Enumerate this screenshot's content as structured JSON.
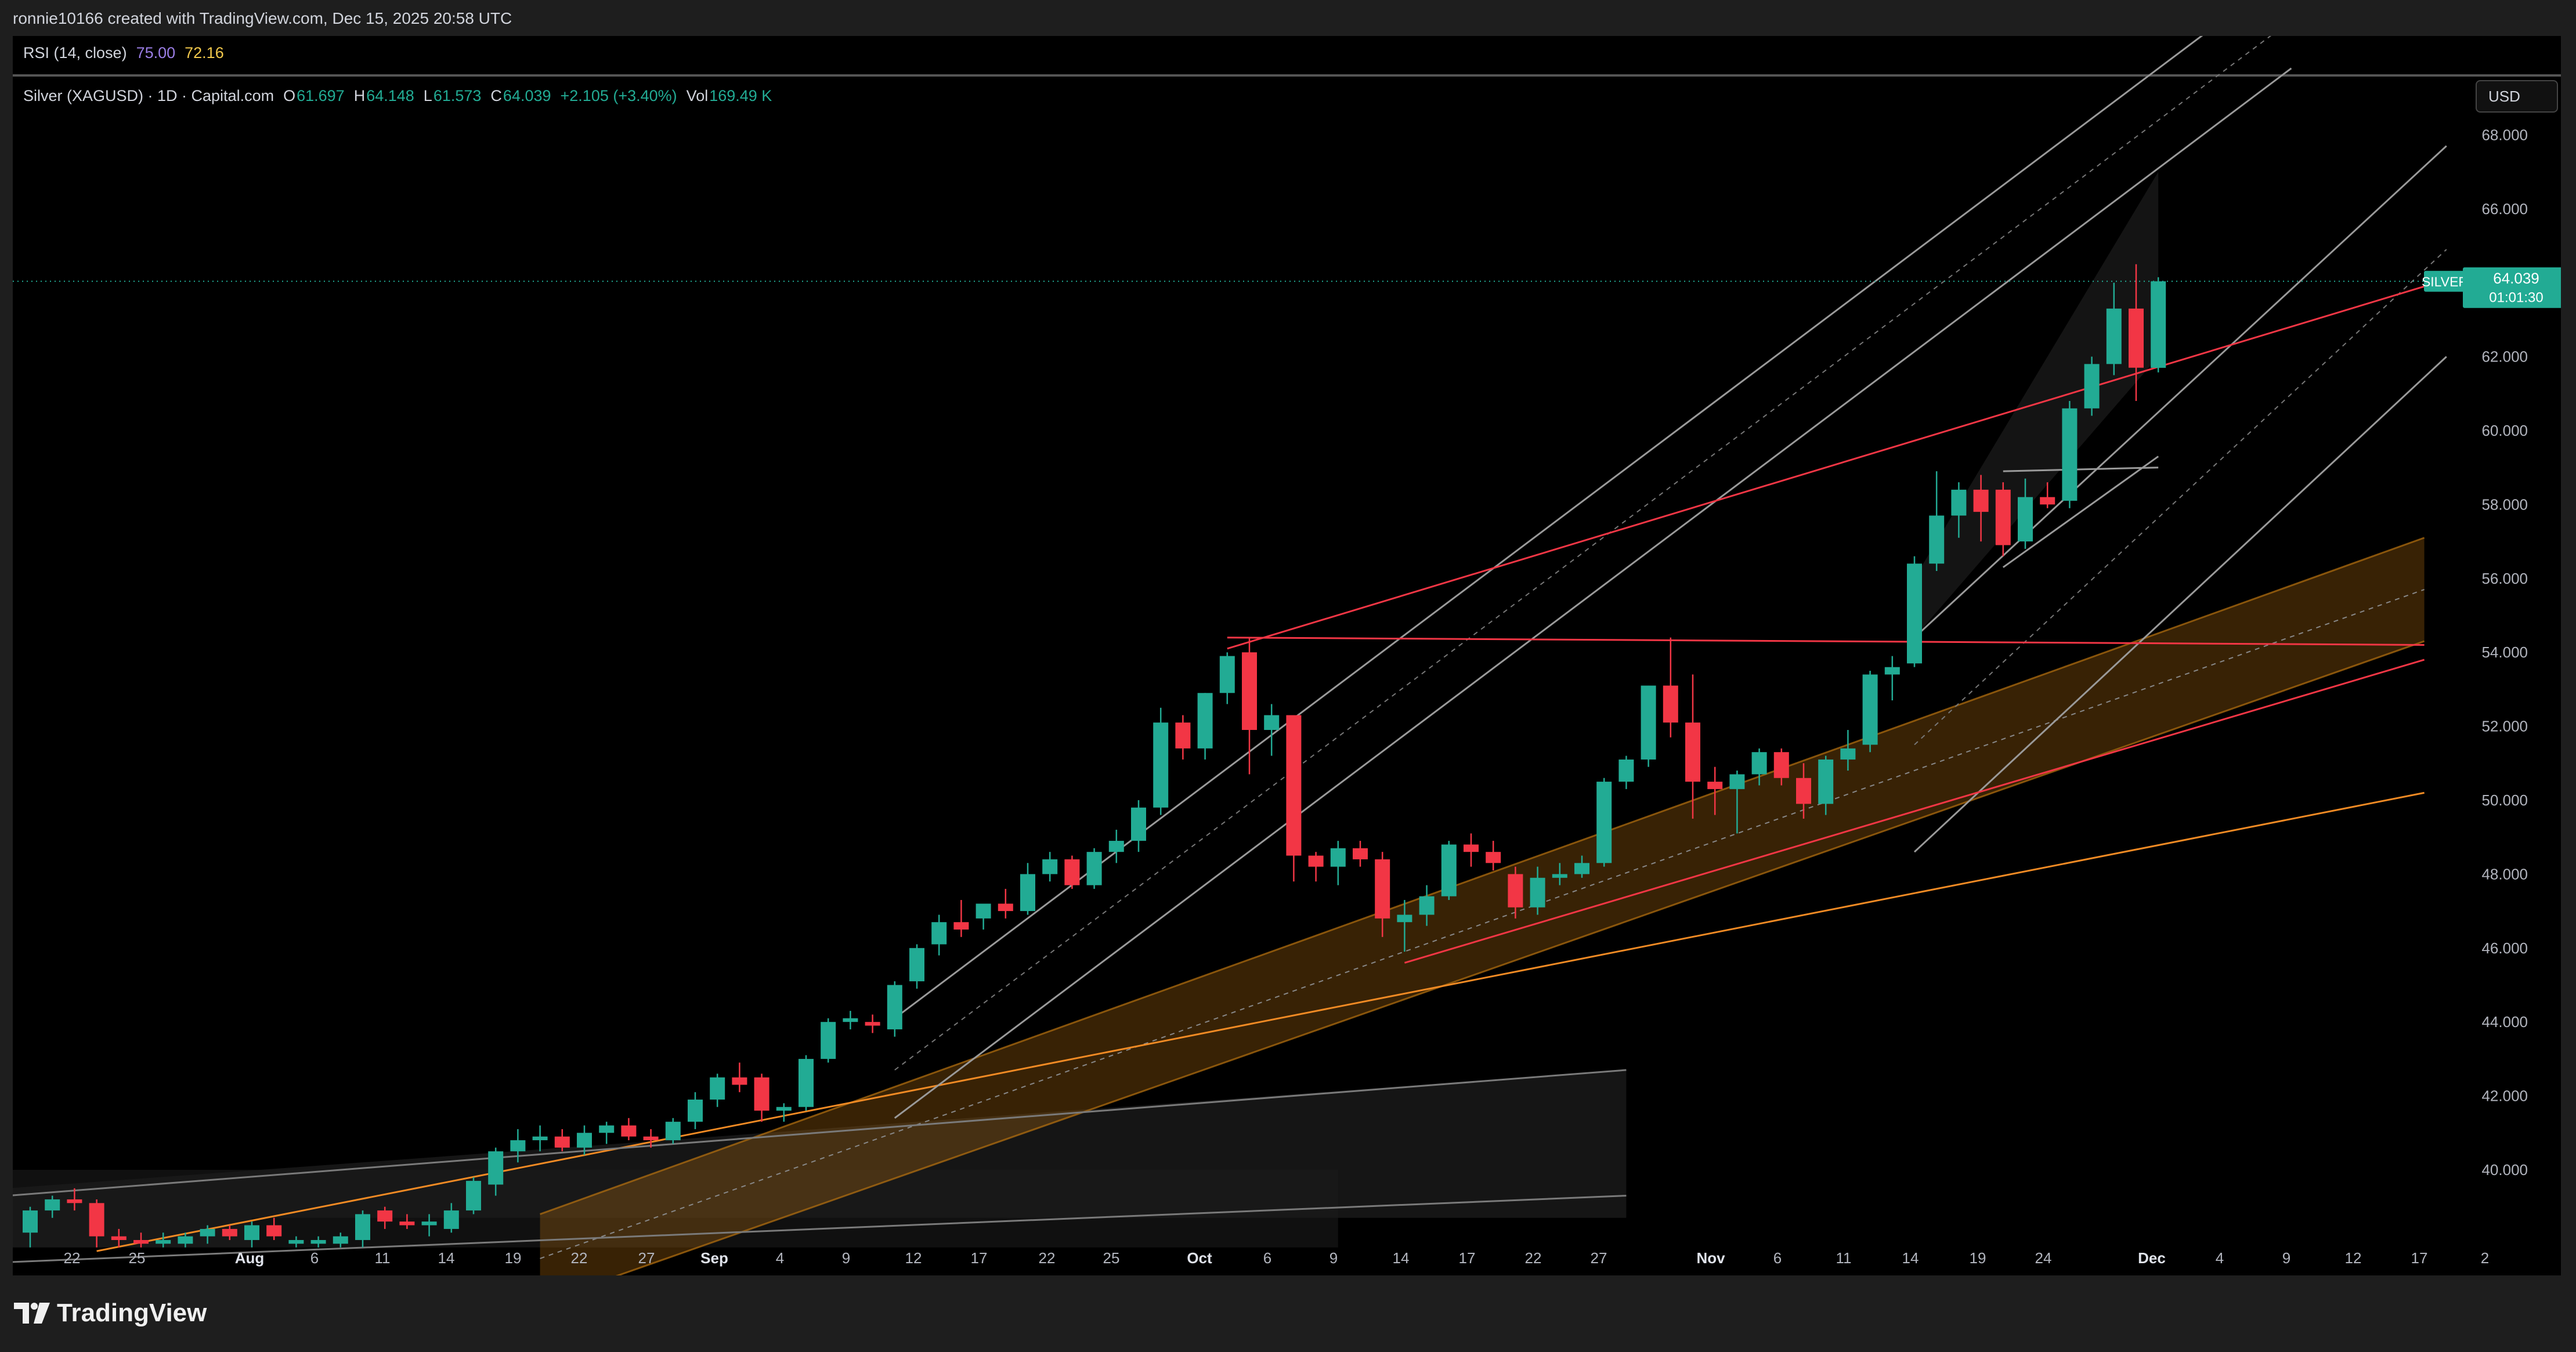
{
  "header": {
    "credit": "ronnie10166 created with TradingView.com, Dec 15, 2025 20:58 UTC"
  },
  "rsi": {
    "label": "RSI (14, close)",
    "value1": "75.00",
    "value2": "72.16"
  },
  "legend": {
    "symbol": "Silver (XAGUSD) · 1D · Capital.com",
    "open_key": "O",
    "open": "61.697",
    "high_key": "H",
    "high": "64.148",
    "low_key": "L",
    "low": "61.573",
    "close_key": "C",
    "close": "64.039",
    "change": "+2.105 (+3.40%)",
    "vol_key": "Vol",
    "vol": "169.49 K"
  },
  "currency_button": "USD",
  "price_tag": {
    "symbol": "SILVER",
    "price": "64.039",
    "countdown": "01:01:30"
  },
  "footer": {
    "brand": "TradingView"
  },
  "colors": {
    "up": "#22ab94",
    "down": "#f23645",
    "channel_fill": "#b8720f",
    "red_line": "#f23645",
    "orange_line": "#f08a24"
  },
  "chart_data": {
    "type": "candlestick",
    "title": "Silver (XAGUSD) · 1D · Capital.com",
    "ylabel": "USD",
    "ylim": [
      37.9,
      69.3
    ],
    "y_ticks": [
      "40.000",
      "42.000",
      "44.000",
      "46.000",
      "48.000",
      "50.000",
      "52.000",
      "54.000",
      "56.000",
      "58.000",
      "60.000",
      "62.000",
      "64.000",
      "66.000",
      "68.000"
    ],
    "x_ticks": [
      "22",
      "25",
      "Aug",
      "6",
      "11",
      "14",
      "19",
      "22",
      "27",
      "Sep",
      "4",
      "9",
      "12",
      "17",
      "22",
      "25",
      "Oct",
      "6",
      "9",
      "14",
      "17",
      "22",
      "27",
      "Nov",
      "6",
      "11",
      "14",
      "19",
      "24",
      "Dec",
      "4",
      "9",
      "12",
      "17",
      "2"
    ],
    "candles": [
      {
        "o": 38.3,
        "h": 39.0,
        "l": 37.9,
        "c": 38.9
      },
      {
        "o": 38.9,
        "h": 39.3,
        "l": 38.7,
        "c": 39.2
      },
      {
        "o": 39.2,
        "h": 39.5,
        "l": 38.9,
        "c": 39.1
      },
      {
        "o": 39.1,
        "h": 39.2,
        "l": 37.9,
        "c": 38.2
      },
      {
        "o": 38.2,
        "h": 38.4,
        "l": 37.9,
        "c": 38.1
      },
      {
        "o": 38.1,
        "h": 38.3,
        "l": 37.9,
        "c": 38.0
      },
      {
        "o": 38.0,
        "h": 38.3,
        "l": 37.9,
        "c": 38.1
      },
      {
        "o": 38.0,
        "h": 38.3,
        "l": 37.9,
        "c": 38.2
      },
      {
        "o": 38.2,
        "h": 38.5,
        "l": 38.0,
        "c": 38.4
      },
      {
        "o": 38.4,
        "h": 38.5,
        "l": 38.1,
        "c": 38.2
      },
      {
        "o": 38.1,
        "h": 38.6,
        "l": 37.9,
        "c": 38.5
      },
      {
        "o": 38.5,
        "h": 38.7,
        "l": 38.1,
        "c": 38.2
      },
      {
        "o": 38.0,
        "h": 38.2,
        "l": 37.9,
        "c": 38.1
      },
      {
        "o": 38.0,
        "h": 38.2,
        "l": 37.9,
        "c": 38.1
      },
      {
        "o": 38.0,
        "h": 38.3,
        "l": 37.9,
        "c": 38.2
      },
      {
        "o": 38.1,
        "h": 38.9,
        "l": 37.9,
        "c": 38.8
      },
      {
        "o": 38.9,
        "h": 39.0,
        "l": 38.4,
        "c": 38.6
      },
      {
        "o": 38.6,
        "h": 38.8,
        "l": 38.4,
        "c": 38.5
      },
      {
        "o": 38.5,
        "h": 38.8,
        "l": 38.2,
        "c": 38.6
      },
      {
        "o": 38.4,
        "h": 39.1,
        "l": 38.3,
        "c": 38.9
      },
      {
        "o": 38.9,
        "h": 39.8,
        "l": 38.8,
        "c": 39.7
      },
      {
        "o": 39.6,
        "h": 40.6,
        "l": 39.3,
        "c": 40.5
      },
      {
        "o": 40.5,
        "h": 41.1,
        "l": 40.2,
        "c": 40.8
      },
      {
        "o": 40.8,
        "h": 41.2,
        "l": 40.5,
        "c": 40.9
      },
      {
        "o": 40.9,
        "h": 41.1,
        "l": 40.5,
        "c": 40.6
      },
      {
        "o": 40.6,
        "h": 41.2,
        "l": 40.4,
        "c": 41.0
      },
      {
        "o": 41.0,
        "h": 41.3,
        "l": 40.7,
        "c": 41.2
      },
      {
        "o": 41.2,
        "h": 41.4,
        "l": 40.8,
        "c": 40.9
      },
      {
        "o": 40.9,
        "h": 41.1,
        "l": 40.6,
        "c": 40.8
      },
      {
        "o": 40.8,
        "h": 41.4,
        "l": 40.7,
        "c": 41.3
      },
      {
        "o": 41.3,
        "h": 42.1,
        "l": 41.1,
        "c": 41.9
      },
      {
        "o": 41.9,
        "h": 42.6,
        "l": 41.7,
        "c": 42.5
      },
      {
        "o": 42.5,
        "h": 42.9,
        "l": 42.1,
        "c": 42.3
      },
      {
        "o": 42.5,
        "h": 42.6,
        "l": 41.3,
        "c": 41.6
      },
      {
        "o": 41.6,
        "h": 41.8,
        "l": 41.3,
        "c": 41.7
      },
      {
        "o": 41.7,
        "h": 43.1,
        "l": 41.6,
        "c": 43.0
      },
      {
        "o": 43.0,
        "h": 44.1,
        "l": 42.9,
        "c": 44.0
      },
      {
        "o": 44.0,
        "h": 44.3,
        "l": 43.8,
        "c": 44.1
      },
      {
        "o": 44.0,
        "h": 44.2,
        "l": 43.7,
        "c": 43.9
      },
      {
        "o": 43.8,
        "h": 45.1,
        "l": 43.6,
        "c": 45.0
      },
      {
        "o": 45.1,
        "h": 46.1,
        "l": 44.9,
        "c": 46.0
      },
      {
        "o": 46.1,
        "h": 46.9,
        "l": 45.8,
        "c": 46.7
      },
      {
        "o": 46.7,
        "h": 47.3,
        "l": 46.3,
        "c": 46.5
      },
      {
        "o": 46.8,
        "h": 47.1,
        "l": 46.5,
        "c": 47.2
      },
      {
        "o": 47.2,
        "h": 47.6,
        "l": 46.8,
        "c": 47.0
      },
      {
        "o": 47.0,
        "h": 48.3,
        "l": 46.9,
        "c": 48.0
      },
      {
        "o": 48.0,
        "h": 48.6,
        "l": 47.8,
        "c": 48.4
      },
      {
        "o": 48.4,
        "h": 48.5,
        "l": 47.6,
        "c": 47.7
      },
      {
        "o": 47.7,
        "h": 48.7,
        "l": 47.6,
        "c": 48.6
      },
      {
        "o": 48.6,
        "h": 49.2,
        "l": 48.3,
        "c": 48.9
      },
      {
        "o": 48.9,
        "h": 50.0,
        "l": 48.6,
        "c": 49.8
      },
      {
        "o": 49.8,
        "h": 52.5,
        "l": 49.6,
        "c": 52.1
      },
      {
        "o": 52.1,
        "h": 52.3,
        "l": 51.1,
        "c": 51.4
      },
      {
        "o": 51.4,
        "h": 52.9,
        "l": 51.1,
        "c": 52.9
      },
      {
        "o": 52.9,
        "h": 54.0,
        "l": 52.6,
        "c": 53.9
      },
      {
        "o": 54.0,
        "h": 54.4,
        "l": 50.7,
        "c": 51.9
      },
      {
        "o": 51.9,
        "h": 52.6,
        "l": 51.2,
        "c": 52.3
      },
      {
        "o": 52.3,
        "h": 52.3,
        "l": 47.8,
        "c": 48.5
      },
      {
        "o": 48.5,
        "h": 48.6,
        "l": 47.8,
        "c": 48.2
      },
      {
        "o": 48.2,
        "h": 48.9,
        "l": 47.7,
        "c": 48.7
      },
      {
        "o": 48.7,
        "h": 48.9,
        "l": 48.2,
        "c": 48.4
      },
      {
        "o": 48.4,
        "h": 48.6,
        "l": 46.3,
        "c": 46.8
      },
      {
        "o": 46.7,
        "h": 47.3,
        "l": 45.9,
        "c": 46.9
      },
      {
        "o": 46.9,
        "h": 47.7,
        "l": 46.6,
        "c": 47.4
      },
      {
        "o": 47.4,
        "h": 48.9,
        "l": 47.3,
        "c": 48.8
      },
      {
        "o": 48.8,
        "h": 49.1,
        "l": 48.2,
        "c": 48.6
      },
      {
        "o": 48.6,
        "h": 48.9,
        "l": 48.1,
        "c": 48.3
      },
      {
        "o": 48.0,
        "h": 48.2,
        "l": 46.8,
        "c": 47.1
      },
      {
        "o": 47.1,
        "h": 48.2,
        "l": 46.9,
        "c": 47.9
      },
      {
        "o": 47.9,
        "h": 48.3,
        "l": 47.7,
        "c": 48.0
      },
      {
        "o": 48.0,
        "h": 48.5,
        "l": 47.9,
        "c": 48.3
      },
      {
        "o": 48.3,
        "h": 50.6,
        "l": 48.2,
        "c": 50.5
      },
      {
        "o": 50.5,
        "h": 51.2,
        "l": 50.3,
        "c": 51.1
      },
      {
        "o": 51.1,
        "h": 53.1,
        "l": 50.9,
        "c": 53.1
      },
      {
        "o": 53.1,
        "h": 54.4,
        "l": 51.7,
        "c": 52.1
      },
      {
        "o": 52.1,
        "h": 53.4,
        "l": 49.5,
        "c": 50.5
      },
      {
        "o": 50.5,
        "h": 50.9,
        "l": 49.6,
        "c": 50.3
      },
      {
        "o": 50.3,
        "h": 50.8,
        "l": 49.1,
        "c": 50.7
      },
      {
        "o": 50.7,
        "h": 51.4,
        "l": 50.4,
        "c": 51.3
      },
      {
        "o": 51.3,
        "h": 51.4,
        "l": 50.4,
        "c": 50.6
      },
      {
        "o": 50.6,
        "h": 51.0,
        "l": 49.5,
        "c": 49.9
      },
      {
        "o": 49.9,
        "h": 51.2,
        "l": 49.6,
        "c": 51.1
      },
      {
        "o": 51.1,
        "h": 51.9,
        "l": 50.8,
        "c": 51.4
      },
      {
        "o": 51.5,
        "h": 53.5,
        "l": 51.3,
        "c": 53.4
      },
      {
        "o": 53.4,
        "h": 53.9,
        "l": 52.7,
        "c": 53.6
      },
      {
        "o": 53.7,
        "h": 56.6,
        "l": 53.6,
        "c": 56.4
      },
      {
        "o": 56.4,
        "h": 58.9,
        "l": 56.2,
        "c": 57.7
      },
      {
        "o": 57.7,
        "h": 58.6,
        "l": 57.1,
        "c": 58.4
      },
      {
        "o": 58.4,
        "h": 58.8,
        "l": 57.0,
        "c": 57.8
      },
      {
        "o": 58.4,
        "h": 58.6,
        "l": 56.6,
        "c": 56.9
      },
      {
        "o": 57.0,
        "h": 58.7,
        "l": 56.8,
        "c": 58.2
      },
      {
        "o": 58.2,
        "h": 58.6,
        "l": 57.9,
        "c": 58.0
      },
      {
        "o": 58.1,
        "h": 60.8,
        "l": 57.9,
        "c": 60.6
      },
      {
        "o": 60.6,
        "h": 62.0,
        "l": 60.4,
        "c": 61.8
      },
      {
        "o": 61.8,
        "h": 64.0,
        "l": 61.5,
        "c": 63.3
      },
      {
        "o": 63.3,
        "h": 64.5,
        "l": 60.8,
        "c": 61.7
      },
      {
        "o": 61.697,
        "h": 64.148,
        "l": 61.573,
        "c": 64.039
      }
    ]
  }
}
